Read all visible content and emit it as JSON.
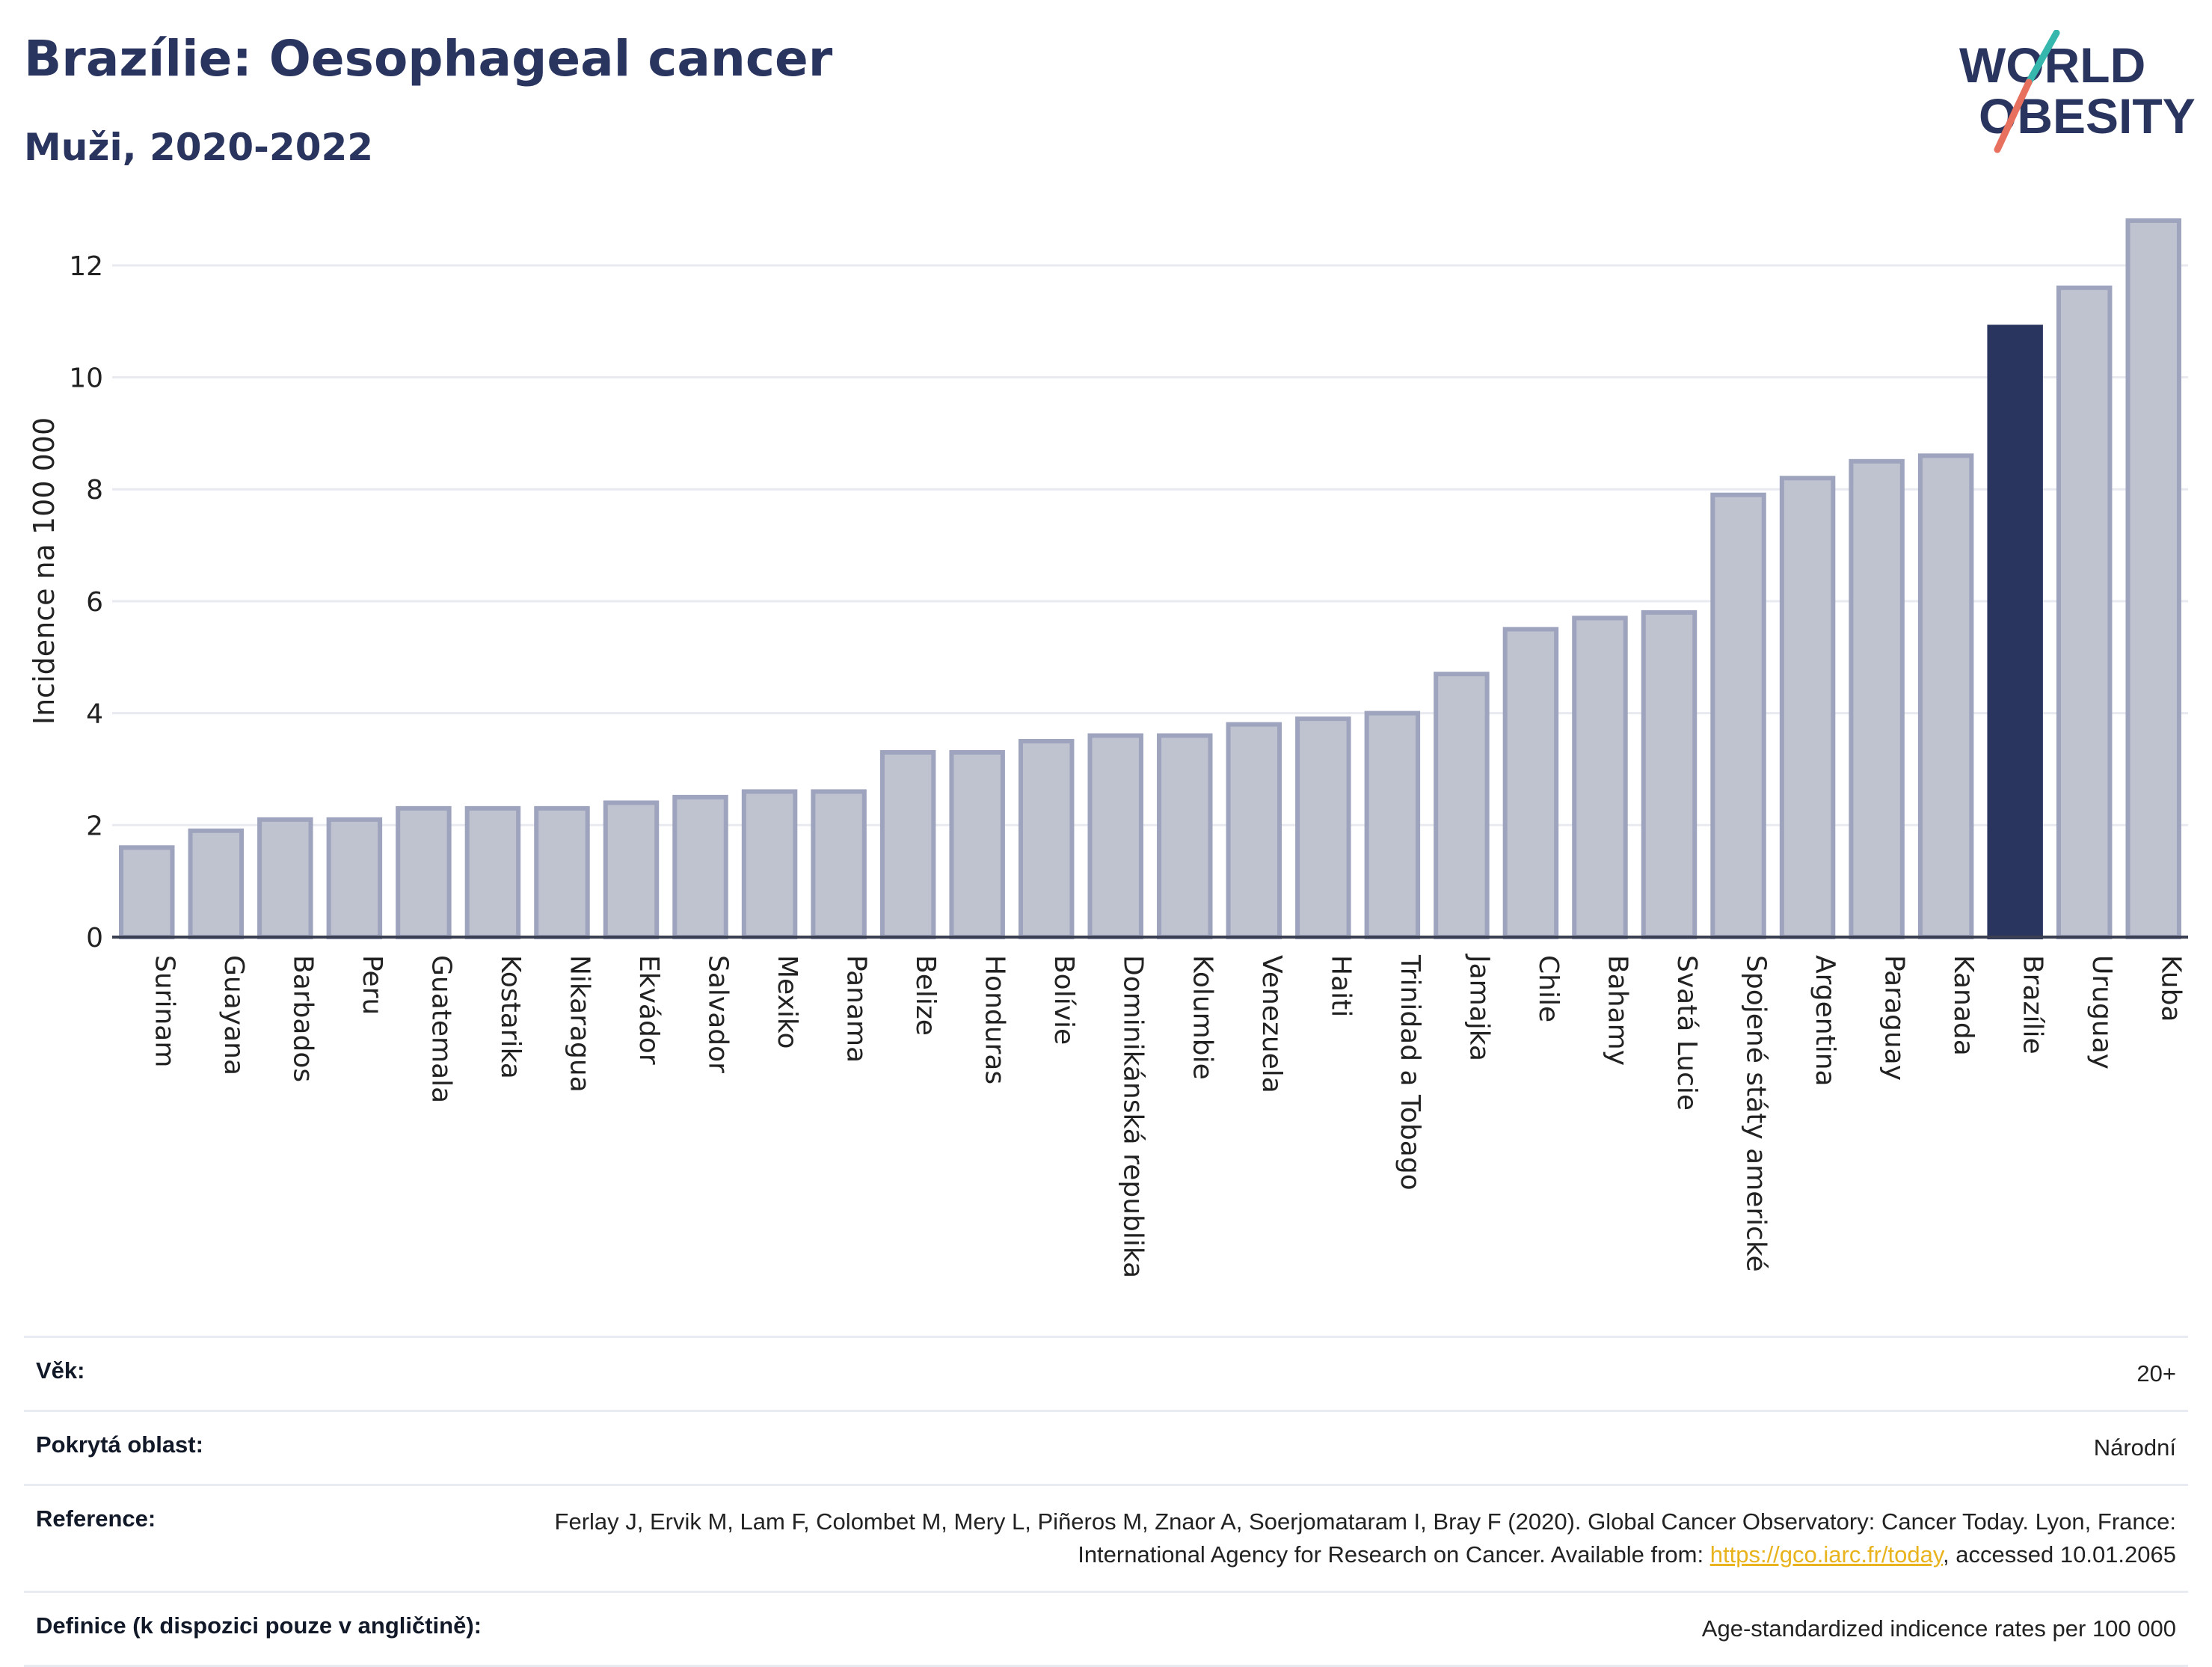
{
  "header": {
    "title": "Brazílie: Oesophageal cancer",
    "subtitle": "Muži, 2020-2022"
  },
  "logo": {
    "line1": "WORLD",
    "line2": "OBESITY"
  },
  "colors": {
    "title": "#2a355f",
    "bar_fill": "#bfc2cf",
    "bar_stroke": "#9ea4bd",
    "highlight": "#2a355f",
    "logo_teal": "#35b7ad",
    "logo_coral": "#e8705f",
    "link": "#e8b31c"
  },
  "chart_data": {
    "type": "bar",
    "ylabel": "Incidence na 100 000",
    "ylim": [
      0,
      13
    ],
    "yticks": [
      0,
      2,
      4,
      6,
      8,
      10,
      12
    ],
    "grid": true,
    "highlight": "Brazílie",
    "categories": [
      "Surinam",
      "Guayana",
      "Barbados",
      "Peru",
      "Guatemala",
      "Kostarika",
      "Nikaragua",
      "Ekvádor",
      "Salvador",
      "Mexiko",
      "Panama",
      "Belize",
      "Honduras",
      "Bolívie",
      "Dominikánská republika",
      "Kolumbie",
      "Venezuela",
      "Haiti",
      "Trinidad a Tobago",
      "Jamajka",
      "Chile",
      "Bahamy",
      "Svatá Lucie",
      "Spojené státy americké",
      "Argentina",
      "Paraguay",
      "Kanada",
      "Brazílie",
      "Uruguay",
      "Kuba"
    ],
    "values": [
      1.6,
      1.9,
      2.1,
      2.1,
      2.3,
      2.3,
      2.3,
      2.4,
      2.5,
      2.6,
      2.6,
      3.3,
      3.3,
      3.5,
      3.6,
      3.6,
      3.8,
      3.9,
      4.0,
      4.7,
      5.5,
      5.7,
      5.8,
      7.9,
      8.2,
      8.5,
      8.6,
      10.9,
      11.6,
      12.8
    ]
  },
  "meta": [
    {
      "label": "Věk:",
      "value": "20+"
    },
    {
      "label": "Pokrytá oblast:",
      "value": "Národní"
    },
    {
      "label": "Reference:",
      "value": "Ferlay J, Ervik M, Lam F, Colombet M, Mery L, Piñeros M, Znaor A, Soerjomataram I, Bray F (2020). Global Cancer Observatory: Cancer Today. Lyon, France: International Agency for Research on Cancer. Available from:",
      "link": "https://gco.iarc.fr/today",
      "suffix": ", accessed 10.01.2065"
    },
    {
      "label": "Definice (k dispozici pouze v angličtině):",
      "value": "Age-standardized indicence rates per 100 000"
    }
  ]
}
